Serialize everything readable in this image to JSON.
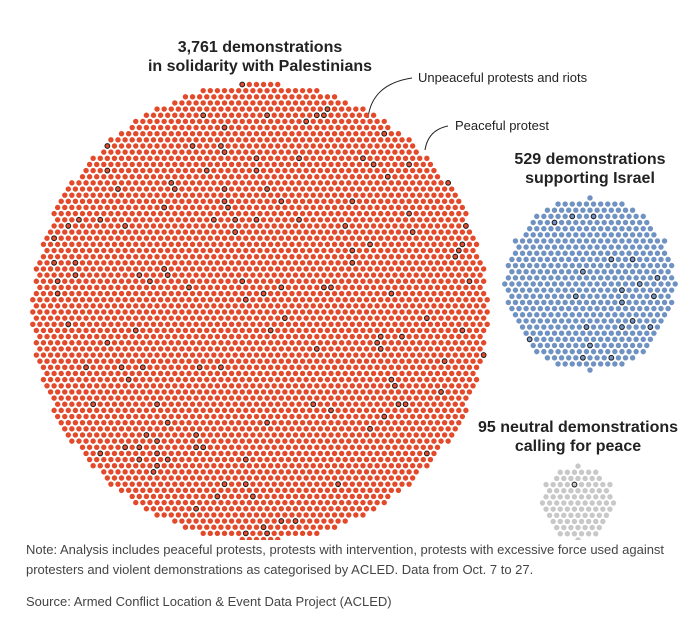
{
  "chart_data": {
    "type": "unit",
    "groups": [
      {
        "title_lines": [
          "3,761 demonstrations",
          "in solidarity with Palestinians"
        ],
        "color": "#e24a2b"
      },
      {
        "title_lines": [
          "529 demonstrations",
          "supporting Israel"
        ],
        "color": "#6f92c2"
      },
      {
        "title_lines": [
          "95 neutral demonstrations",
          "calling for peace"
        ],
        "color": "#c8c8c8"
      }
    ],
    "series": [
      {
        "name": "Peaceful protest",
        "values": [
          3631,
          509,
          94
        ]
      },
      {
        "name": "Unpeaceful protests and riots",
        "values": [
          130,
          20,
          1
        ],
        "stroke": "#1a1a1a"
      }
    ],
    "note": "Note: Analysis includes peaceful protests, protests with intervention, protests with excessive force used against protesters and violent demonstrations as categorised by ACLED. Data from Oct. 7 to 27.",
    "source": "Source: Armed Conflict Location & Event Data Project (ACLED)"
  }
}
